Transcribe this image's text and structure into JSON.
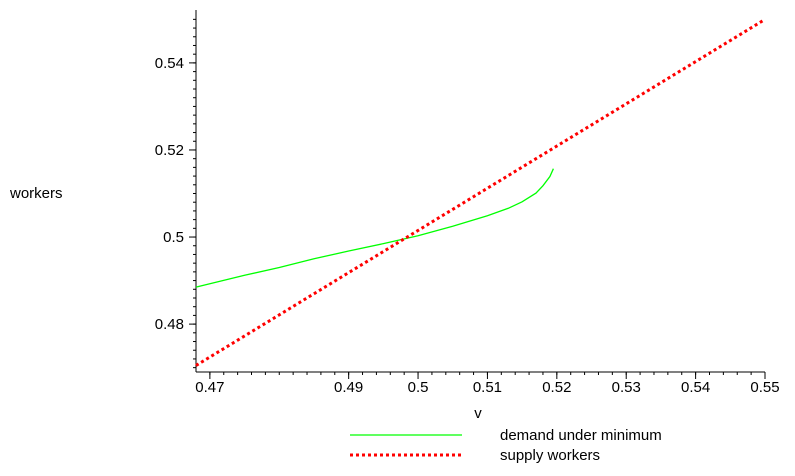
{
  "chart_data": {
    "type": "line",
    "title": "",
    "xlabel": "v",
    "ylabel": "workers",
    "xlim": [
      0.468,
      0.55
    ],
    "ylim": [
      0.469,
      0.551
    ],
    "x_ticks": [
      0.47,
      0.49,
      0.5,
      0.51,
      0.52,
      0.53,
      0.54,
      0.55
    ],
    "x_tick_labels": [
      "0.47",
      "0.49",
      "0.5",
      "0.51",
      "0.52",
      "0.53",
      "0.54",
      "0.55"
    ],
    "y_ticks": [
      0.48,
      0.5,
      0.52,
      0.54
    ],
    "y_tick_labels": [
      "0.48",
      "0.5",
      "0.52",
      "0.54"
    ],
    "grid": false,
    "legend_position": "bottom-right",
    "series": [
      {
        "name": "demand under minimum",
        "color": "#00ff00",
        "style": "solid",
        "x": [
          0.468,
          0.475,
          0.48,
          0.485,
          0.49,
          0.495,
          0.5,
          0.505,
          0.51,
          0.513,
          0.515,
          0.517,
          0.518,
          0.519,
          0.5195
        ],
        "y": [
          0.4885,
          0.4912,
          0.493,
          0.495,
          0.4968,
          0.4985,
          0.5003,
          0.5025,
          0.5049,
          0.5066,
          0.5081,
          0.5101,
          0.5118,
          0.5139,
          0.5157
        ]
      },
      {
        "name": "supply workers",
        "color": "#ff0000",
        "style": "dotted",
        "x": [
          0.468,
          0.55
        ],
        "y": [
          0.4705,
          0.55
        ]
      }
    ]
  }
}
